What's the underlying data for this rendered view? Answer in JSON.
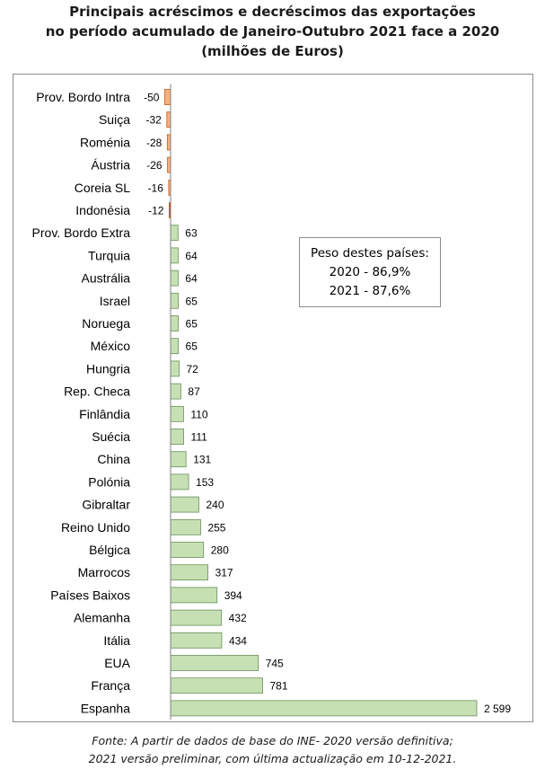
{
  "title_lines": [
    "Principais acréscimos e decréscimos das exportações",
    "no período acumulado de Janeiro-Outubro 2021 face a 2020",
    "(milhões de Euros)"
  ],
  "note": {
    "heading": "Peso destes países:",
    "line1": "2020 - 86,9%",
    "line2": "2021 - 87,6%"
  },
  "source_lines": [
    "Fonte: A partir de dados de base do INE- 2020 versão definitiva;",
    "2021 versão preliminar, com última actualização em 10-12-2021."
  ],
  "colors": {
    "positive_fill": "#c6e0b4",
    "positive_stroke": "#6b8e5a",
    "negative_fill": "#f4b183",
    "negative_stroke": "#c55a11",
    "highlight_negative_fill": "#e03c31",
    "axis": "#808080"
  },
  "chart_data": {
    "type": "bar",
    "orientation": "horizontal",
    "title": "Principais acréscimos e decréscimos das exportações no período acumulado de Janeiro-Outubro 2021 face a 2020 (milhões de Euros)",
    "categories": [
      "Prov. Bordo Intra",
      "Suiça",
      "Roménia",
      "Áustria",
      "Coreia SL",
      "Indonésia",
      "Prov. Bordo Extra",
      "Turquia",
      "Austrália",
      "Israel",
      "Noruega",
      "México",
      "Hungria",
      "Rep. Checa",
      "Finlândia",
      "Suécia",
      "China",
      "Polónia",
      "Gibraltar",
      "Reino Unido",
      "Bélgica",
      "Marrocos",
      "Países Baixos",
      "Alemanha",
      "Itália",
      "EUA",
      "França",
      "Espanha"
    ],
    "values": [
      -50,
      -32,
      -28,
      -26,
      -16,
      -12,
      63,
      64,
      64,
      65,
      65,
      65,
      72,
      87,
      110,
      111,
      131,
      153,
      240,
      255,
      280,
      317,
      394,
      432,
      434,
      745,
      781,
      2599
    ],
    "value_labels": [
      "-50",
      "-32",
      "-28",
      "-26",
      "-16",
      "-12",
      "63",
      "64",
      "64",
      "65",
      "65",
      "65",
      "72",
      "87",
      "110",
      "111",
      "131",
      "153",
      "240",
      "255",
      "280",
      "317",
      "394",
      "432",
      "434",
      "745",
      "781",
      "2 599"
    ],
    "xlabel": "",
    "ylabel": "",
    "xlim": [
      -50,
      2599
    ],
    "grid": false,
    "legend": "none"
  }
}
